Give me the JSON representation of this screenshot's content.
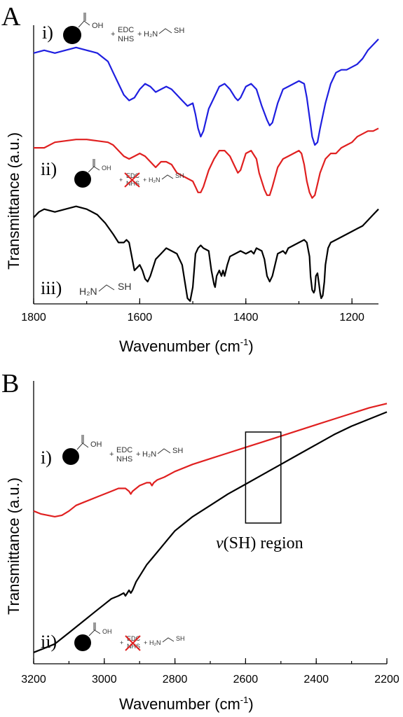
{
  "panels": {
    "A": {
      "letter": "A",
      "ylabel": "Transmittance (a.u.)",
      "xlabel": "Wavenumber (cm",
      "xlabel_sup": "-1",
      "xlabel_end": ")",
      "labels": {
        "i": "i)",
        "ii": "ii)",
        "iii": "iii)"
      }
    },
    "B": {
      "letter": "B",
      "ylabel": "Transmittance (a.u.)",
      "xlabel": "Wavenumber (cm",
      "xlabel_sup": "-1",
      "xlabel_end": ")",
      "labels": {
        "i": "i)",
        "ii": "ii)"
      },
      "annotation_italic": "v",
      "annotation_rest": "(SH) region"
    }
  },
  "chem": {
    "oh": "OH",
    "plus": "+",
    "edc": "EDC",
    "nhs": "NHS",
    "h2n": "H₂N",
    "sh": "SH",
    "cross": "✗"
  },
  "chart_data": [
    {
      "type": "line",
      "panel": "A",
      "xlabel": "Wavenumber (cm-1)",
      "ylabel": "Transmittance (a.u.)",
      "xlim": [
        1800,
        1150
      ],
      "ylim": [
        0,
        100
      ],
      "x_ticks": [
        1800,
        1600,
        1400,
        1200
      ],
      "grid": false,
      "colors": [
        "#1f1fe0",
        "#e02020",
        "#000000"
      ],
      "series": [
        {
          "x": [
            1800,
            1780,
            1760,
            1740,
            1720,
            1700,
            1680,
            1660,
            1650,
            1640,
            1630,
            1620,
            1610,
            1600,
            1590,
            1580,
            1570,
            1560,
            1550,
            1540,
            1530,
            1520,
            1510,
            1500,
            1495,
            1490,
            1485,
            1480,
            1470,
            1460,
            1450,
            1440,
            1430,
            1420,
            1415,
            1410,
            1400,
            1390,
            1380,
            1370,
            1360,
            1355,
            1350,
            1340,
            1330,
            1320,
            1310,
            1300,
            1290,
            1285,
            1280,
            1275,
            1270,
            1265,
            1260,
            1250,
            1240,
            1230,
            1220,
            1210,
            1200,
            1190,
            1180,
            1170,
            1160,
            1150
          ],
          "y": [
            90,
            91,
            90,
            91,
            92,
            91,
            90,
            87,
            83,
            79,
            75,
            73,
            74,
            77,
            79,
            78,
            76,
            77,
            78,
            77,
            75,
            73,
            71,
            72,
            68,
            63,
            60,
            62,
            70,
            74,
            78,
            79,
            77,
            74,
            73,
            74,
            78,
            79,
            77,
            71,
            66,
            64,
            65,
            72,
            77,
            78,
            79,
            80,
            79,
            74,
            67,
            60,
            57,
            58,
            63,
            72,
            79,
            83,
            84,
            84,
            85,
            86,
            88,
            91,
            93,
            95
          ]
        },
        {
          "x": [
            1800,
            1780,
            1760,
            1740,
            1720,
            1700,
            1680,
            1660,
            1650,
            1640,
            1630,
            1620,
            1610,
            1600,
            1590,
            1580,
            1570,
            1560,
            1550,
            1540,
            1530,
            1520,
            1510,
            1500,
            1495,
            1490,
            1485,
            1480,
            1470,
            1460,
            1450,
            1440,
            1430,
            1425,
            1420,
            1415,
            1410,
            1400,
            1390,
            1380,
            1375,
            1370,
            1365,
            1360,
            1355,
            1350,
            1340,
            1330,
            1320,
            1310,
            1300,
            1295,
            1290,
            1285,
            1280,
            1275,
            1270,
            1265,
            1260,
            1250,
            1240,
            1230,
            1220,
            1210,
            1200,
            1190,
            1180,
            1170,
            1160,
            1150
          ],
          "y": [
            56,
            56,
            58,
            58.5,
            59,
            59,
            58.5,
            58,
            57,
            55,
            53,
            52,
            53,
            54,
            53,
            51,
            49,
            51,
            51,
            50,
            47,
            46,
            45,
            44,
            42,
            40,
            40,
            42,
            48,
            52,
            55,
            55,
            53,
            51,
            49,
            47,
            48,
            54,
            55,
            52,
            47,
            44,
            41,
            39,
            39,
            42,
            49,
            52,
            53,
            54,
            55,
            54,
            50,
            44,
            40,
            38,
            39,
            43,
            47,
            52,
            54,
            54,
            56,
            57,
            58,
            60,
            61,
            62,
            62,
            63
          ]
        },
        {
          "x": [
            1800,
            1790,
            1780,
            1760,
            1740,
            1720,
            1700,
            1680,
            1665,
            1650,
            1640,
            1630,
            1625,
            1620,
            1615,
            1610,
            1605,
            1600,
            1595,
            1590,
            1585,
            1580,
            1570,
            1560,
            1550,
            1540,
            1530,
            1520,
            1515,
            1510,
            1505,
            1500,
            1495,
            1490,
            1485,
            1480,
            1470,
            1465,
            1460,
            1458,
            1455,
            1450,
            1448,
            1446,
            1443,
            1440,
            1435,
            1430,
            1420,
            1410,
            1400,
            1390,
            1385,
            1380,
            1370,
            1365,
            1360,
            1355,
            1350,
            1340,
            1330,
            1325,
            1320,
            1310,
            1300,
            1290,
            1285,
            1280,
            1278,
            1275,
            1272,
            1270,
            1268,
            1265,
            1262,
            1260,
            1258,
            1255,
            1252,
            1250,
            1245,
            1240,
            1230,
            1220,
            1210,
            1200,
            1190,
            1180,
            1170,
            1160,
            1150
          ],
          "y": [
            31,
            33,
            34,
            33,
            34,
            35,
            34,
            32,
            29,
            25,
            22,
            22,
            23,
            22,
            17,
            12,
            13,
            14,
            12,
            9,
            8,
            10,
            16,
            18,
            20,
            19,
            18,
            14,
            8,
            2,
            1,
            6,
            18,
            20,
            21,
            20,
            19,
            12,
            7,
            6,
            10,
            12,
            11,
            10,
            12,
            10,
            14,
            17,
            18,
            19,
            18,
            19,
            18,
            20,
            19,
            16,
            10,
            8,
            10,
            18,
            19,
            18,
            20,
            21,
            22,
            23,
            22,
            17,
            10,
            5,
            4,
            5,
            10,
            11,
            7,
            4,
            2,
            3,
            8,
            14,
            20,
            22,
            23,
            24,
            25,
            26,
            27,
            28,
            30,
            32,
            34
          ]
        }
      ]
    },
    {
      "type": "line",
      "panel": "B",
      "xlabel": "Wavenumber (cm-1)",
      "ylabel": "Transmittance (a.u.)",
      "xlim": [
        3200,
        2200
      ],
      "ylim": [
        0,
        100
      ],
      "x_ticks": [
        3200,
        3000,
        2800,
        2600,
        2400,
        2200
      ],
      "grid": false,
      "annotation": "v(SH) region",
      "annotation_box_x": [
        2600,
        2500
      ],
      "colors": [
        "#e02020",
        "#000000"
      ],
      "series": [
        {
          "x": [
            3200,
            3180,
            3160,
            3140,
            3120,
            3100,
            3080,
            3060,
            3040,
            3020,
            3000,
            2980,
            2960,
            2940,
            2930,
            2925,
            2920,
            2910,
            2900,
            2880,
            2870,
            2865,
            2860,
            2850,
            2830,
            2800,
            2750,
            2700,
            2650,
            2600,
            2550,
            2500,
            2450,
            2400,
            2350,
            2300,
            2250,
            2200
          ],
          "y": [
            54,
            53,
            52.5,
            52,
            52.5,
            54,
            56,
            57,
            58,
            59,
            60,
            61,
            62,
            62,
            61,
            60,
            61,
            62,
            63,
            64,
            64,
            63,
            64,
            65,
            66,
            68,
            70.5,
            72.5,
            74.5,
            76.5,
            78.5,
            80.5,
            82.5,
            84.5,
            86.5,
            88.5,
            90.5,
            92
          ]
        },
        {
          "x": [
            3200,
            3180,
            3160,
            3140,
            3120,
            3100,
            3080,
            3060,
            3040,
            3020,
            3000,
            2980,
            2960,
            2945,
            2940,
            2930,
            2925,
            2920,
            2910,
            2900,
            2880,
            2860,
            2840,
            2820,
            2800,
            2750,
            2700,
            2650,
            2600,
            2550,
            2500,
            2450,
            2400,
            2350,
            2300,
            2250,
            2200
          ],
          "y": [
            4,
            5,
            6,
            7,
            9,
            11,
            13,
            15,
            17,
            19,
            21,
            23,
            24,
            25,
            24,
            26,
            25,
            26,
            29,
            31,
            35,
            38,
            41,
            44,
            47,
            52,
            56,
            60,
            63.5,
            67,
            70.5,
            74,
            77.5,
            81,
            84,
            86.5,
            89
          ]
        }
      ]
    }
  ]
}
